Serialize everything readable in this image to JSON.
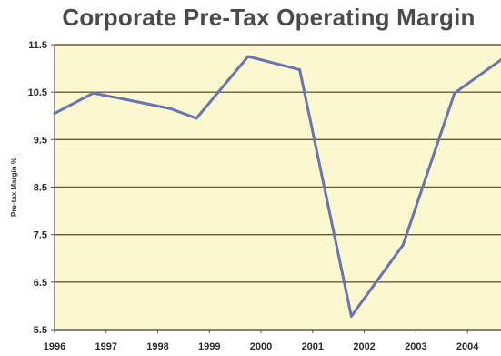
{
  "chart_data": {
    "type": "line",
    "title": "Corporate Pre-Tax Operating Margin",
    "xlabel": "",
    "ylabel": "Pre-tax Margin %",
    "x_ticks": [
      "1996",
      "1997",
      "1998",
      "1999",
      "2000",
      "2001",
      "2002",
      "2003",
      "2004"
    ],
    "y_ticks": [
      "11.5",
      "10.5",
      "9.5",
      "8.5",
      "7.5",
      "6.5",
      "5.5"
    ],
    "ylim": [
      5.5,
      11.5
    ],
    "xlim": [
      1996,
      2004.65
    ],
    "grid": true,
    "series": [
      {
        "x": [
          1996,
          1996.75,
          1997.5,
          1998.25,
          1998.75,
          1999.75,
          2000.75,
          2001.75,
          2002.75,
          2003.75,
          2004.65
        ],
        "values": [
          10.05,
          10.48,
          10.32,
          10.15,
          9.95,
          11.25,
          10.97,
          5.78,
          7.28,
          10.48,
          11.18
        ]
      }
    ],
    "colors": {
      "plot_background": "#fbf7cf",
      "grid": "#6b5a3a",
      "line": "#6874b4",
      "axis": "#555555"
    }
  }
}
